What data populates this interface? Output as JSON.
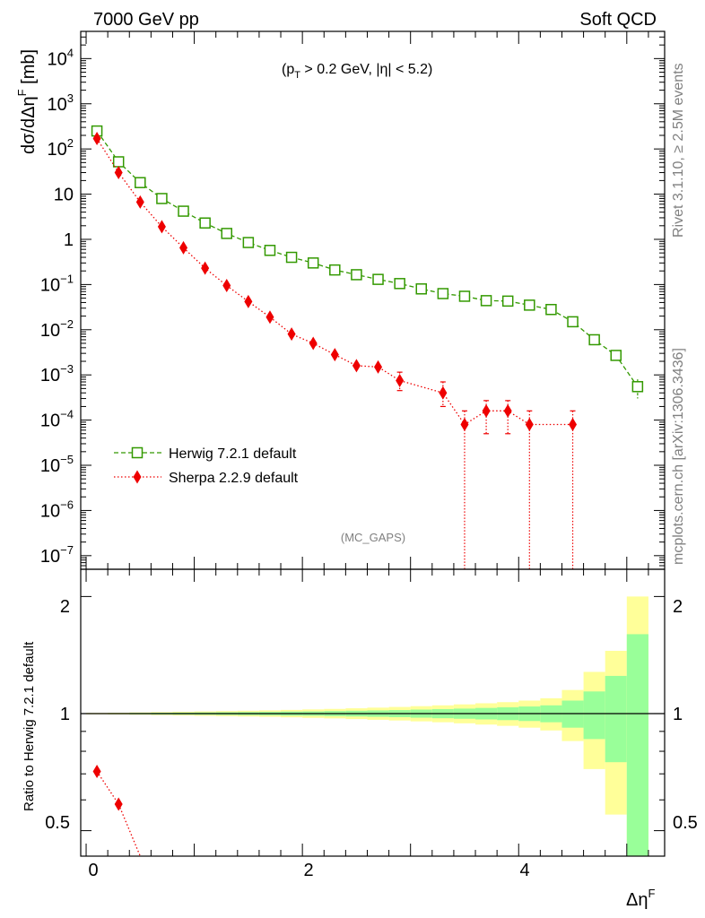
{
  "header": {
    "left": "7000 GeV pp",
    "right": "Soft QCD"
  },
  "annotation": {
    "cuts_prefix": "(p",
    "cuts_sub": "T",
    "cuts_suffix": " > 0.2 GeV, |η| < 5.2)",
    "analysis": "(MC_GAPS)"
  },
  "side_labels": {
    "rivet": "Rivet 3.1.10, ≥ 2.5M events",
    "mcplots": "mcplots.cern.ch [arXiv:1306.3436]"
  },
  "axes": {
    "main_ylabel": "dσ/dΔη",
    "main_ylabel_sup": "F",
    "main_ylabel_unit": " [mb]",
    "ratio_ylabel": "Ratio to Herwig 7.2.1 default",
    "xlabel": "Δη",
    "xlabel_sup": "F",
    "x_ticks": [
      "0",
      "2",
      "4"
    ],
    "ratio_ticks": [
      "0.5",
      "1",
      "2"
    ]
  },
  "colors": {
    "herwig": "#339900",
    "sherpa": "#ee0000",
    "band_inner": "#99ff99",
    "band_outer": "#ffff99"
  },
  "chart_data": [
    {
      "type": "line",
      "title": "",
      "xlabel": "Δη^F",
      "ylabel": "dσ/dΔη^F [mb]",
      "yscale": "log",
      "xlim": [
        -0.05,
        5.35
      ],
      "ylim": [
        5e-08,
        40000
      ],
      "legend": "middle-left",
      "series": [
        {
          "name": "Herwig 7.2.1 default",
          "marker": "open-square",
          "style": "dashed",
          "x": [
            0.1,
            0.3,
            0.5,
            0.7,
            0.9,
            1.1,
            1.3,
            1.5,
            1.7,
            1.9,
            2.1,
            2.3,
            2.5,
            2.7,
            2.9,
            3.1,
            3.3,
            3.5,
            3.7,
            3.9,
            4.1,
            4.3,
            4.5,
            4.7,
            4.9,
            5.1
          ],
          "y": [
            250,
            52,
            18,
            8,
            4.2,
            2.3,
            1.35,
            0.85,
            0.57,
            0.4,
            0.3,
            0.21,
            0.165,
            0.13,
            0.105,
            0.08,
            0.063,
            0.055,
            0.044,
            0.043,
            0.035,
            0.028,
            0.015,
            0.006,
            0.0027,
            0.00055
          ],
          "err": [
            0,
            0,
            0,
            0,
            0,
            0,
            0,
            0,
            0,
            0,
            0,
            0,
            0,
            0,
            0,
            0,
            0,
            0,
            0,
            0,
            0,
            0,
            0,
            0,
            0.0004,
            0.00025
          ]
        },
        {
          "name": "Sherpa 2.2.9 default",
          "marker": "filled-diamond",
          "style": "dotted",
          "x": [
            0.1,
            0.3,
            0.5,
            0.7,
            0.9,
            1.1,
            1.3,
            1.5,
            1.7,
            1.9,
            2.1,
            2.3,
            2.5,
            2.7,
            2.9,
            3.3,
            3.5,
            3.7,
            3.9,
            4.1,
            4.5
          ],
          "y": [
            170,
            30,
            6.7,
            1.9,
            0.65,
            0.23,
            0.095,
            0.042,
            0.019,
            0.008,
            0.005,
            0.0028,
            0.0016,
            0.0015,
            0.00075,
            0.0004,
            8e-05,
            0.00016,
            0.00016,
            8e-05,
            8e-05
          ],
          "err_low": [
            0,
            0,
            0,
            0,
            0,
            0,
            0,
            0,
            0,
            0,
            0,
            0,
            0,
            0,
            0.0003,
            0.0002,
            8e-05,
            0.00011,
            0.00011,
            8e-05,
            8e-05
          ],
          "err_high": [
            0,
            0,
            0,
            0,
            0,
            0,
            0,
            0,
            0,
            0,
            0,
            0,
            0,
            0,
            0.0004,
            0.0003,
            8e-05,
            0.00011,
            0.00011,
            8e-05,
            8e-05
          ]
        }
      ]
    },
    {
      "type": "line",
      "title": "",
      "xlabel": "Δη^F",
      "ylabel": "Ratio to Herwig 7.2.1 default",
      "yscale": "log",
      "ylim": [
        0.43,
        2.35
      ],
      "reference": 1,
      "band_edges": [
        0.0,
        0.2,
        0.4,
        0.6,
        0.8,
        1.0,
        1.2,
        1.4,
        1.6,
        1.8,
        2.0,
        2.2,
        2.4,
        2.6,
        2.8,
        3.0,
        3.2,
        3.4,
        3.6,
        3.8,
        4.0,
        4.2,
        4.4,
        4.6,
        4.8,
        5.0,
        5.2
      ],
      "band_inner": [
        0.002,
        0.003,
        0.004,
        0.005,
        0.006,
        0.007,
        0.008,
        0.009,
        0.01,
        0.012,
        0.013,
        0.015,
        0.017,
        0.019,
        0.021,
        0.024,
        0.027,
        0.03,
        0.034,
        0.038,
        0.043,
        0.05,
        0.08,
        0.14,
        0.25,
        0.6
      ],
      "band_outer": [
        0.004,
        0.005,
        0.007,
        0.009,
        0.011,
        0.013,
        0.015,
        0.017,
        0.019,
        0.022,
        0.025,
        0.028,
        0.032,
        0.036,
        0.04,
        0.045,
        0.05,
        0.056,
        0.063,
        0.07,
        0.08,
        0.095,
        0.15,
        0.28,
        0.45,
        1.0
      ],
      "series": [
        {
          "name": "Sherpa 2.2.9 default",
          "x": [
            0.1,
            0.3,
            0.5
          ],
          "y": [
            0.71,
            0.585,
            0.37
          ]
        }
      ]
    }
  ]
}
